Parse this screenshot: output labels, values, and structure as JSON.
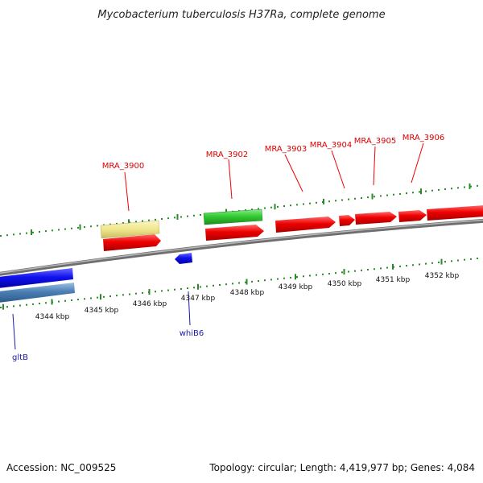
{
  "title": "Mycobacterium tuberculosis H37Ra, complete genome",
  "footer": {
    "accession": "Accession: NC_009525",
    "summary": "Topology: circular; Length: 4,419,977 bp; Genes: 4,084"
  },
  "scale_labels": [
    "4344 kbp",
    "4345 kbp",
    "4346 kbp",
    "4347 kbp",
    "4348 kbp",
    "4349 kbp",
    "4350 kbp",
    "4351 kbp",
    "4352 kbp"
  ],
  "gene_labels": {
    "mra_3900": "MRA_3900",
    "mra_3902": "MRA_3902",
    "mra_3903": "MRA_3903",
    "mra_3904": "MRA_3904",
    "mra_3905": "MRA_3905",
    "mra_3906": "MRA_3906",
    "gltb": "gltB",
    "whib6": "whiB6"
  },
  "colors": {
    "forward_gene": "#ee0000",
    "rrna_gene": "#f0e68c",
    "trna_gene": "#33cc33",
    "reverse_gene": "#1111ee",
    "reverse_pseudo": "#4a7fb5",
    "tick": "#2a8a2a",
    "backbone": "#888888"
  }
}
